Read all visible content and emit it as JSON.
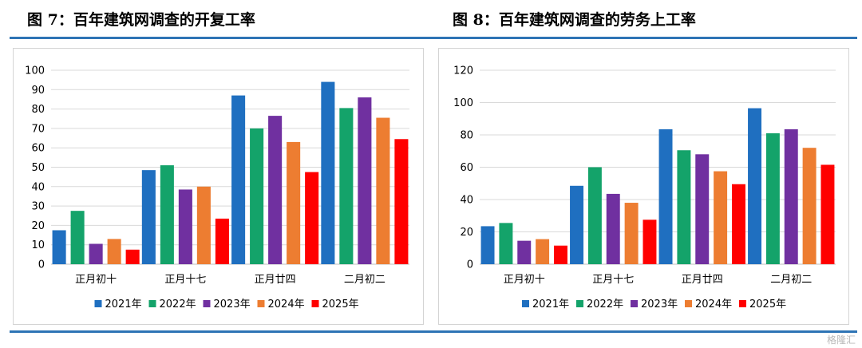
{
  "figures": {
    "left_title": "图 7：百年建筑网调查的开复工率",
    "right_title": "图 8：百年建筑网调查的劳务上工率"
  },
  "watermark": "格隆汇",
  "colors": {
    "rule": "#2e74b5",
    "grid": "#d9d9d9",
    "series": [
      "#1f6fc0",
      "#14a36a",
      "#7030a0",
      "#ed7d31",
      "#ff0000"
    ]
  },
  "chart_data": [
    {
      "type": "bar",
      "title": "",
      "xlabel": "",
      "ylabel": "",
      "categories": [
        "正月初十",
        "正月十七",
        "正月廿四",
        "二月初二"
      ],
      "yticks": [
        0,
        10,
        20,
        30,
        40,
        50,
        60,
        70,
        80,
        90,
        100
      ],
      "ylim": [
        0,
        100
      ],
      "grid": true,
      "legend": "bottom",
      "series": [
        {
          "name": "2021年",
          "values": [
            17.5,
            48.5,
            87,
            94
          ]
        },
        {
          "name": "2022年",
          "values": [
            27.5,
            51,
            70,
            80.5
          ]
        },
        {
          "name": "2023年",
          "values": [
            10.5,
            38.5,
            76.5,
            86
          ]
        },
        {
          "name": "2024年",
          "values": [
            13,
            40,
            63,
            75.5
          ]
        },
        {
          "name": "2025年",
          "values": [
            7.5,
            23.5,
            47.5,
            64.5
          ]
        }
      ]
    },
    {
      "type": "bar",
      "title": "",
      "xlabel": "",
      "ylabel": "",
      "categories": [
        "正月初十",
        "正月十七",
        "正月廿四",
        "二月初二"
      ],
      "yticks": [
        0,
        20,
        40,
        60,
        80,
        100,
        120
      ],
      "ylim": [
        0,
        120
      ],
      "grid": true,
      "legend": "bottom",
      "series": [
        {
          "name": "2021年",
          "values": [
            23.5,
            48.5,
            83.5,
            96.5
          ]
        },
        {
          "name": "2022年",
          "values": [
            25.5,
            60,
            70.5,
            81
          ]
        },
        {
          "name": "2023年",
          "values": [
            14.5,
            43.5,
            68,
            83.5
          ]
        },
        {
          "name": "2024年",
          "values": [
            15.5,
            38,
            57.5,
            72
          ]
        },
        {
          "name": "2025年",
          "values": [
            11.5,
            27.5,
            49.5,
            61.5
          ]
        }
      ]
    }
  ]
}
